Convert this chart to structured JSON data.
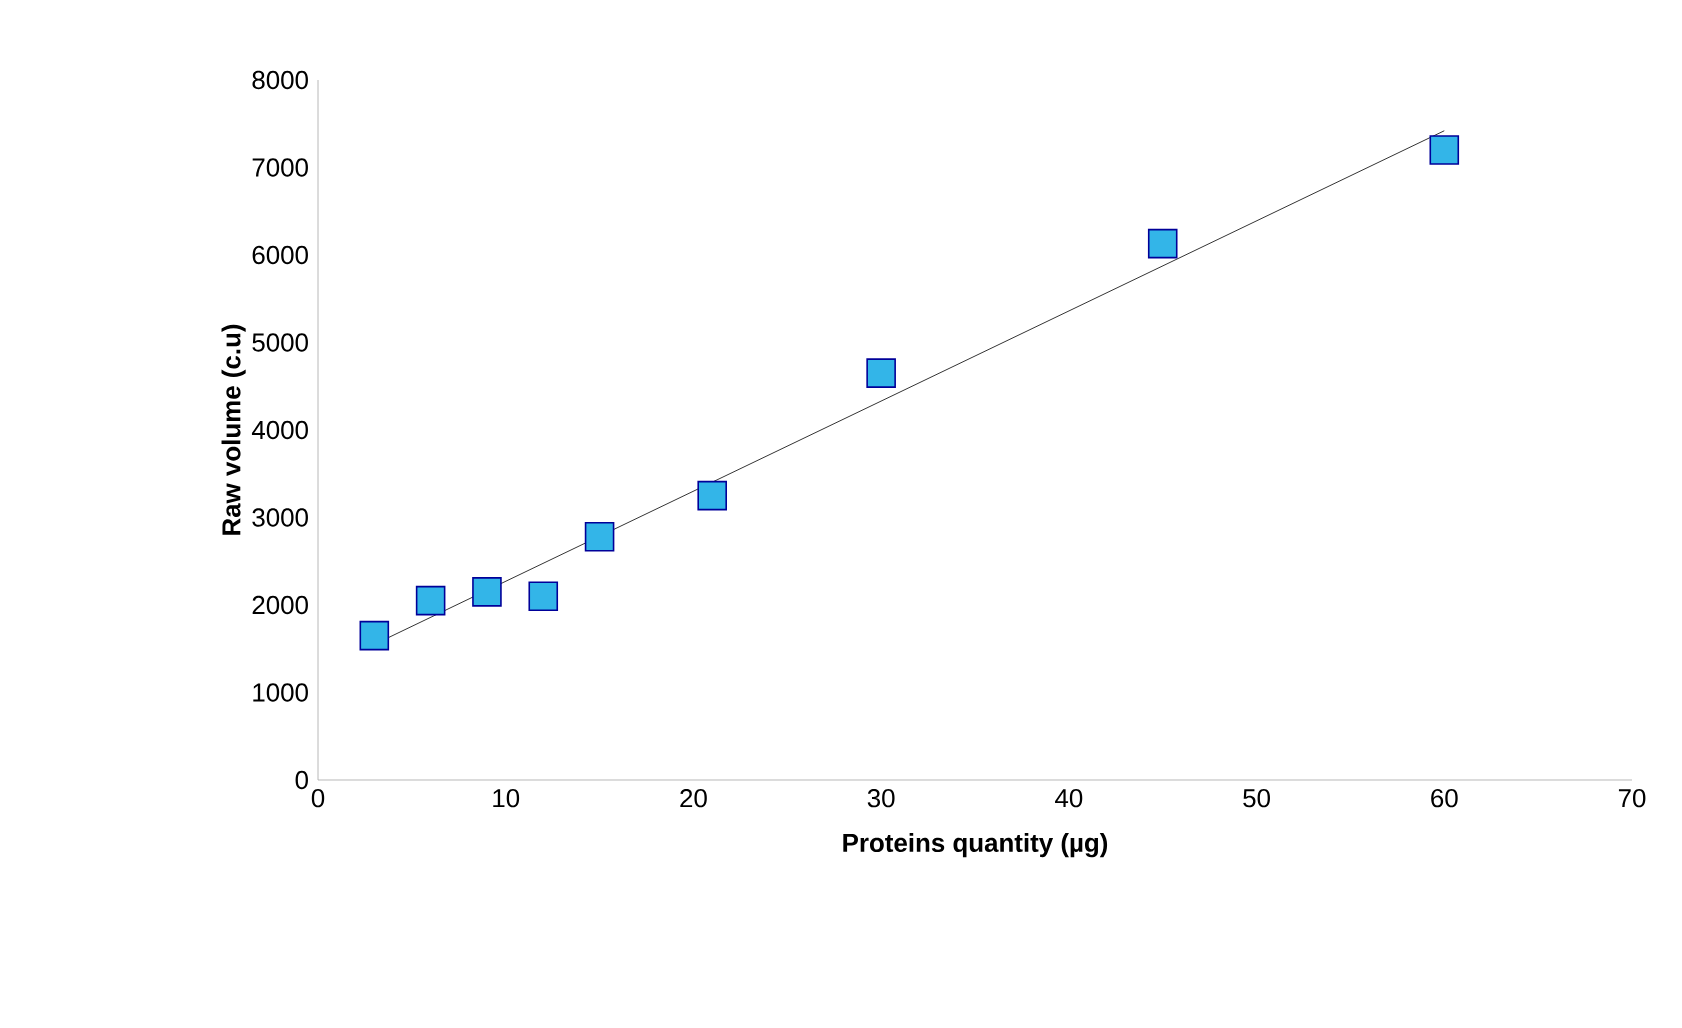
{
  "chart_data": {
    "type": "scatter",
    "xlabel": "Proteins quantity (µg)",
    "ylabel": "Raw volume (c.u)",
    "xlim": [
      0,
      70
    ],
    "ylim": [
      0,
      8000
    ],
    "xticks": [
      0,
      10,
      20,
      30,
      40,
      50,
      60,
      70
    ],
    "yticks": [
      0,
      1000,
      2000,
      3000,
      4000,
      5000,
      6000,
      7000,
      8000
    ],
    "series": [
      {
        "marker": "square",
        "color": "#33b5e8",
        "x": [
          3,
          6,
          9,
          12,
          15,
          21,
          30,
          45,
          60
        ],
        "values": [
          1650,
          2050,
          2150,
          2100,
          2780,
          3250,
          4650,
          6130,
          7200
        ]
      },
      {
        "type": "line",
        "marker": "none",
        "color": "#000000",
        "x": [
          3,
          60
        ],
        "values": [
          1550,
          7420
        ]
      }
    ]
  }
}
